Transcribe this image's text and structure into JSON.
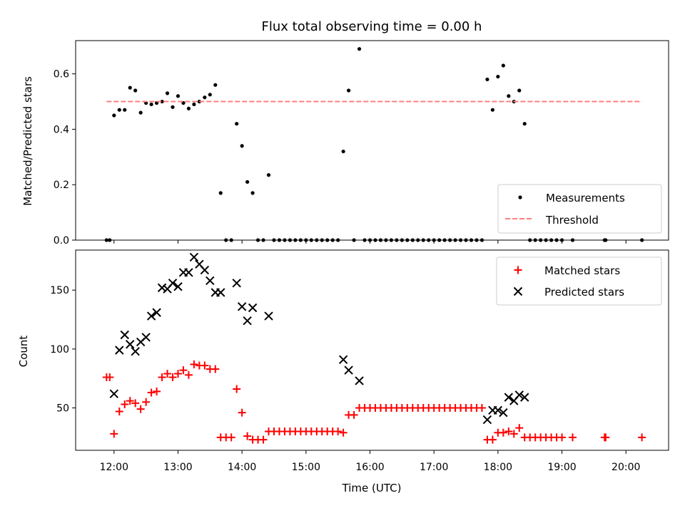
{
  "chart_data": [
    {
      "type": "scatter",
      "title": "Flux total observing time = 0.00 h",
      "xlabel": "",
      "ylabel": "Matched/Predicted stars",
      "xlim": [
        "11:24",
        "20:40"
      ],
      "ylim": [
        0,
        0.72
      ],
      "yticks": [
        0.0,
        0.2,
        0.4,
        0.6
      ],
      "ytick_labels": [
        "0.0",
        "0.2",
        "0.4",
        "0.6"
      ],
      "legend_position": "lower right",
      "series": [
        {
          "name": "Measurements",
          "marker": "dot",
          "color": "#000000",
          "points": [
            [
              "11:53",
              0.0
            ],
            [
              "11:56",
              0.0
            ],
            [
              "12:00",
              0.45
            ],
            [
              "12:05",
              0.47
            ],
            [
              "12:10",
              0.47
            ],
            [
              "12:15",
              0.55
            ],
            [
              "12:20",
              0.54
            ],
            [
              "12:25",
              0.46
            ],
            [
              "12:30",
              0.495
            ],
            [
              "12:35",
              0.49
            ],
            [
              "12:40",
              0.495
            ],
            [
              "12:45",
              0.5
            ],
            [
              "12:50",
              0.53
            ],
            [
              "12:55",
              0.48
            ],
            [
              "13:00",
              0.52
            ],
            [
              "13:05",
              0.495
            ],
            [
              "13:10",
              0.475
            ],
            [
              "13:15",
              0.49
            ],
            [
              "13:20",
              0.5
            ],
            [
              "13:25",
              0.515
            ],
            [
              "13:30",
              0.525
            ],
            [
              "13:35",
              0.56
            ],
            [
              "13:40",
              0.17
            ],
            [
              "13:45",
              0.0
            ],
            [
              "13:50",
              0.0
            ],
            [
              "13:55",
              0.42
            ],
            [
              "14:00",
              0.34
            ],
            [
              "14:05",
              0.21
            ],
            [
              "14:10",
              0.17
            ],
            [
              "14:15",
              0.0
            ],
            [
              "14:20",
              0.0
            ],
            [
              "14:25",
              0.235
            ],
            [
              "14:30",
              0.0
            ],
            [
              "14:35",
              0.0
            ],
            [
              "14:40",
              0.0
            ],
            [
              "14:45",
              0.0
            ],
            [
              "14:50",
              0.0
            ],
            [
              "14:55",
              0.0
            ],
            [
              "15:00",
              0.0
            ],
            [
              "15:05",
              0.0
            ],
            [
              "15:10",
              0.0
            ],
            [
              "15:15",
              0.0
            ],
            [
              "15:20",
              0.0
            ],
            [
              "15:25",
              0.0
            ],
            [
              "15:30",
              0.0
            ],
            [
              "15:35",
              0.32
            ],
            [
              "15:40",
              0.54
            ],
            [
              "15:45",
              0.0
            ],
            [
              "15:50",
              0.69
            ],
            [
              "15:55",
              0.0
            ],
            [
              "16:00",
              0.0
            ],
            [
              "16:05",
              0.0
            ],
            [
              "16:10",
              0.0
            ],
            [
              "16:15",
              0.0
            ],
            [
              "16:20",
              0.0
            ],
            [
              "16:25",
              0.0
            ],
            [
              "16:30",
              0.0
            ],
            [
              "16:35",
              0.0
            ],
            [
              "16:40",
              0.0
            ],
            [
              "16:45",
              0.0
            ],
            [
              "16:50",
              0.0
            ],
            [
              "16:55",
              0.0
            ],
            [
              "17:00",
              0.0
            ],
            [
              "17:05",
              0.0
            ],
            [
              "17:10",
              0.0
            ],
            [
              "17:15",
              0.0
            ],
            [
              "17:20",
              0.0
            ],
            [
              "17:25",
              0.0
            ],
            [
              "17:30",
              0.0
            ],
            [
              "17:35",
              0.0
            ],
            [
              "17:40",
              0.0
            ],
            [
              "17:45",
              0.0
            ],
            [
              "17:50",
              0.58
            ],
            [
              "17:55",
              0.47
            ],
            [
              "18:00",
              0.59
            ],
            [
              "18:05",
              0.63
            ],
            [
              "18:10",
              0.52
            ],
            [
              "18:15",
              0.5
            ],
            [
              "18:20",
              0.54
            ],
            [
              "18:25",
              0.42
            ],
            [
              "18:30",
              0.0
            ],
            [
              "18:35",
              0.0
            ],
            [
              "18:40",
              0.0
            ],
            [
              "18:45",
              0.0
            ],
            [
              "18:50",
              0.0
            ],
            [
              "18:55",
              0.0
            ],
            [
              "19:00",
              0.0
            ],
            [
              "19:10",
              0.0
            ],
            [
              "19:40",
              0.0
            ],
            [
              "19:41",
              0.0
            ],
            [
              "20:15",
              0.0
            ]
          ]
        },
        {
          "name": "Threshold",
          "marker": "dashed-line",
          "color": "#ff7f7f",
          "points": [
            [
              "11:53",
              0.5
            ],
            [
              "20:15",
              0.5
            ]
          ]
        }
      ]
    },
    {
      "type": "scatter",
      "title": "",
      "xlabel": "Time (UTC)",
      "ylabel": "Count",
      "xlim": [
        "11:24",
        "20:40"
      ],
      "ylim": [
        14,
        184
      ],
      "yticks": [
        50,
        100,
        150
      ],
      "ytick_labels": [
        "50",
        "100",
        "150"
      ],
      "xticks": [
        "12:00",
        "13:00",
        "14:00",
        "15:00",
        "16:00",
        "17:00",
        "18:00",
        "19:00",
        "20:00"
      ],
      "legend_position": "upper right",
      "series": [
        {
          "name": "Matched stars",
          "marker": "plus",
          "color": "#ff0000",
          "points": [
            [
              "11:53",
              76
            ],
            [
              "11:56",
              76
            ],
            [
              "12:00",
              28
            ],
            [
              "12:05",
              47
            ],
            [
              "12:10",
              53
            ],
            [
              "12:15",
              56
            ],
            [
              "12:20",
              54
            ],
            [
              "12:25",
              49
            ],
            [
              "12:30",
              55
            ],
            [
              "12:35",
              63
            ],
            [
              "12:40",
              64
            ],
            [
              "12:45",
              76
            ],
            [
              "12:50",
              79
            ],
            [
              "12:55",
              76
            ],
            [
              "13:00",
              79
            ],
            [
              "13:05",
              82
            ],
            [
              "13:10",
              78
            ],
            [
              "13:15",
              87
            ],
            [
              "13:20",
              86
            ],
            [
              "13:25",
              86
            ],
            [
              "13:30",
              83
            ],
            [
              "13:35",
              83
            ],
            [
              "13:40",
              25
            ],
            [
              "13:45",
              25
            ],
            [
              "13:50",
              25
            ],
            [
              "13:55",
              66
            ],
            [
              "14:00",
              46
            ],
            [
              "14:05",
              26
            ],
            [
              "14:10",
              23
            ],
            [
              "14:15",
              23
            ],
            [
              "14:20",
              23
            ],
            [
              "14:25",
              30
            ],
            [
              "14:30",
              30
            ],
            [
              "14:35",
              30
            ],
            [
              "14:40",
              30
            ],
            [
              "14:45",
              30
            ],
            [
              "14:50",
              30
            ],
            [
              "14:55",
              30
            ],
            [
              "15:00",
              30
            ],
            [
              "15:05",
              30
            ],
            [
              "15:10",
              30
            ],
            [
              "15:15",
              30
            ],
            [
              "15:20",
              30
            ],
            [
              "15:25",
              30
            ],
            [
              "15:30",
              30
            ],
            [
              "15:35",
              29
            ],
            [
              "15:40",
              44
            ],
            [
              "15:45",
              44
            ],
            [
              "15:50",
              50
            ],
            [
              "15:55",
              50
            ],
            [
              "16:00",
              50
            ],
            [
              "16:05",
              50
            ],
            [
              "16:10",
              50
            ],
            [
              "16:15",
              50
            ],
            [
              "16:20",
              50
            ],
            [
              "16:25",
              50
            ],
            [
              "16:30",
              50
            ],
            [
              "16:35",
              50
            ],
            [
              "16:40",
              50
            ],
            [
              "16:45",
              50
            ],
            [
              "16:50",
              50
            ],
            [
              "16:55",
              50
            ],
            [
              "17:00",
              50
            ],
            [
              "17:05",
              50
            ],
            [
              "17:10",
              50
            ],
            [
              "17:15",
              50
            ],
            [
              "17:20",
              50
            ],
            [
              "17:25",
              50
            ],
            [
              "17:30",
              50
            ],
            [
              "17:35",
              50
            ],
            [
              "17:40",
              50
            ],
            [
              "17:45",
              50
            ],
            [
              "17:50",
              23
            ],
            [
              "17:55",
              23
            ],
            [
              "18:00",
              29
            ],
            [
              "18:05",
              29
            ],
            [
              "18:10",
              30
            ],
            [
              "18:15",
              28
            ],
            [
              "18:20",
              33
            ],
            [
              "18:25",
              25
            ],
            [
              "18:30",
              25
            ],
            [
              "18:35",
              25
            ],
            [
              "18:40",
              25
            ],
            [
              "18:45",
              25
            ],
            [
              "18:50",
              25
            ],
            [
              "18:55",
              25
            ],
            [
              "19:00",
              25
            ],
            [
              "19:10",
              25
            ],
            [
              "19:40",
              25
            ],
            [
              "19:41",
              25
            ],
            [
              "20:15",
              25
            ]
          ]
        },
        {
          "name": "Predicted stars",
          "marker": "x",
          "color": "#000000",
          "points": [
            [
              "12:00",
              62
            ],
            [
              "12:05",
              99
            ],
            [
              "12:10",
              112
            ],
            [
              "12:15",
              104
            ],
            [
              "12:20",
              98
            ],
            [
              "12:25",
              106
            ],
            [
              "12:30",
              110
            ],
            [
              "12:35",
              128
            ],
            [
              "12:40",
              131
            ],
            [
              "12:45",
              152
            ],
            [
              "12:50",
              151
            ],
            [
              "12:55",
              156
            ],
            [
              "13:00",
              153
            ],
            [
              "13:05",
              165
            ],
            [
              "13:10",
              165
            ],
            [
              "13:15",
              178
            ],
            [
              "13:20",
              172
            ],
            [
              "13:25",
              167
            ],
            [
              "13:30",
              158
            ],
            [
              "13:35",
              148
            ],
            [
              "13:40",
              148
            ],
            [
              "13:55",
              156
            ],
            [
              "14:00",
              136
            ],
            [
              "14:05",
              124
            ],
            [
              "14:10",
              135
            ],
            [
              "14:25",
              128
            ],
            [
              "15:35",
              91
            ],
            [
              "15:40",
              82
            ],
            [
              "15:50",
              73
            ],
            [
              "17:50",
              40
            ],
            [
              "17:55",
              48
            ],
            [
              "18:00",
              48
            ],
            [
              "18:05",
              46
            ],
            [
              "18:10",
              59
            ],
            [
              "18:15",
              56
            ],
            [
              "18:20",
              61
            ],
            [
              "18:25",
              59
            ]
          ]
        }
      ]
    }
  ]
}
